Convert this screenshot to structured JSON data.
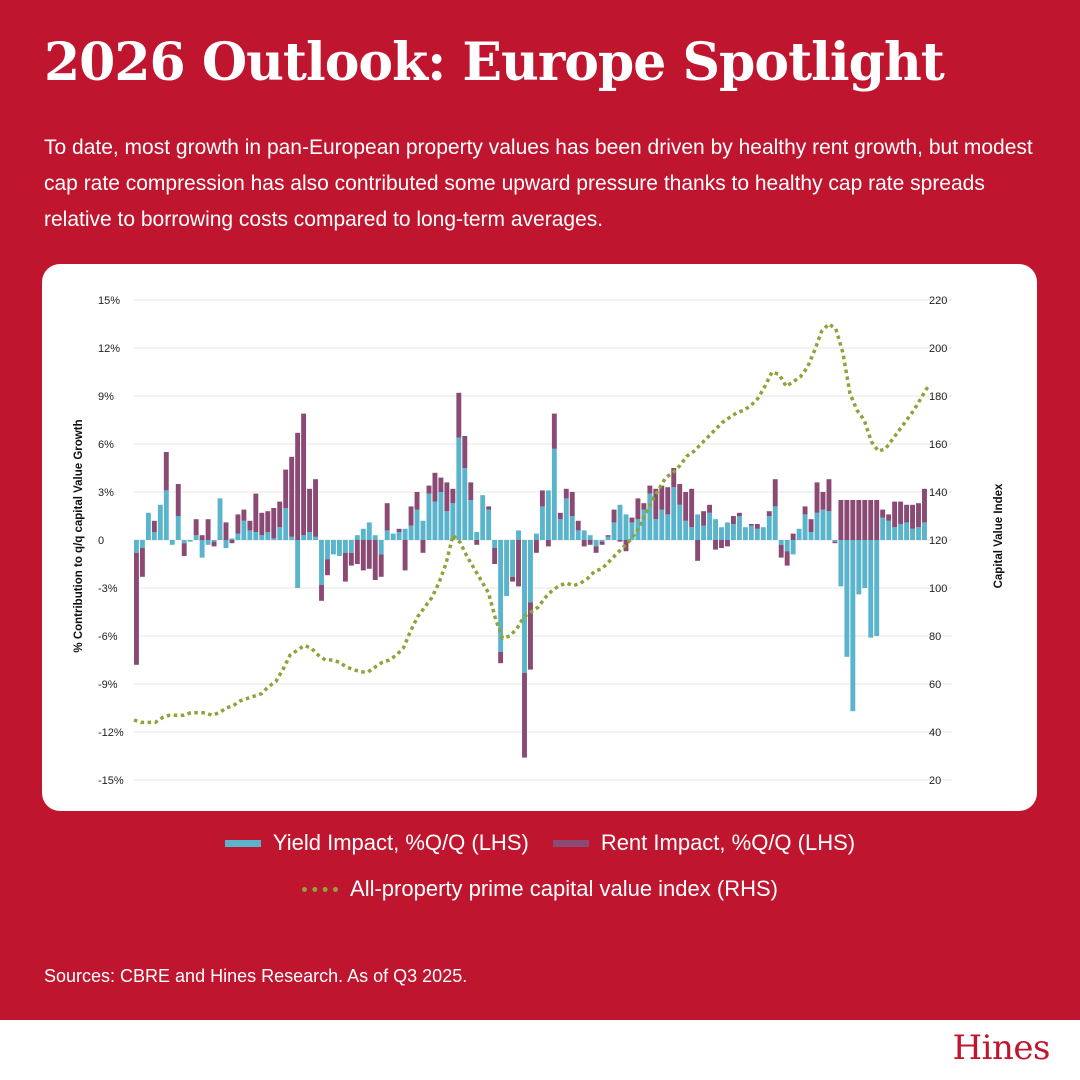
{
  "header": {
    "title": "2026 Outlook: Europe Spotlight",
    "subtitle": "To date, most growth in pan-European property values has been driven by healthy rent growth, but modest cap rate compression has also contributed some upward pressure thanks to healthy cap rate spreads relative to borrowing costs compared to long-term averages."
  },
  "colors": {
    "background": "#c0152f",
    "yield": "#5ab4cc",
    "rent": "#8a4a73",
    "index": "#8fa33a"
  },
  "chart_data": {
    "type": "bar",
    "left_axis": {
      "label": "% Contribution to q/q capital Value Growth",
      "ylim": [
        -15,
        15
      ],
      "ticks": [
        "15%",
        "12%",
        "9%",
        "6%",
        "3%",
        "0",
        "-3%",
        "-6%",
        "-9%",
        "-12%",
        "-15%"
      ]
    },
    "right_axis": {
      "label": "Capital Value Index",
      "ylim": [
        20,
        220
      ],
      "ticks": [
        "220",
        "200",
        "180",
        "160",
        "140",
        "120",
        "100",
        "80",
        "60",
        "40",
        "20"
      ]
    },
    "grid": true,
    "legend_placement": "bottom",
    "series": [
      {
        "name": "Yield Impact, %Q/Q (LHS)",
        "kind": "bar",
        "axis": "left",
        "values": [
          -0.8,
          -0.5,
          1.7,
          0.5,
          2.2,
          3.1,
          -0.3,
          1.5,
          -0.2,
          -0.1,
          0.3,
          -1.1,
          -0.3,
          -0.1,
          2.6,
          -0.5,
          0.1,
          0.4,
          1.2,
          0.6,
          0.5,
          0.3,
          0.5,
          0.1,
          0.8,
          2,
          0.2,
          -3,
          0.3,
          0.5,
          0.2,
          -2.8,
          -1.2,
          -0.9,
          -1,
          -0.8,
          -0.8,
          0.3,
          0.7,
          1.1,
          0.3,
          -0.9,
          0.6,
          0.4,
          0.5,
          0.7,
          0.9,
          1.9,
          1.2,
          2.9,
          2.4,
          3,
          1.8,
          2.3,
          6.4,
          4.5,
          2.5,
          0.5,
          2.8,
          1.9,
          -0.5,
          -7,
          -3.5,
          -2.3,
          0.6,
          -8.3,
          -3.9,
          0.4,
          2.1,
          3.1,
          5.7,
          1.3,
          2.6,
          1.5,
          0.6,
          0.6,
          0.3,
          -0.4,
          -0.1,
          0.2,
          1.1,
          2.2,
          1.6,
          1.1,
          1.3,
          1.9,
          2.9,
          1.3,
          1.9,
          1.6,
          3.3,
          2.2,
          1.2,
          0.8,
          1.6,
          0.9,
          1.7,
          1.3,
          0.8,
          1.1,
          1,
          1.5,
          0.8,
          0.9,
          0.7,
          0.8,
          1.5,
          2.1,
          -0.3,
          -0.7,
          -0.9,
          0.7,
          1.6,
          0.5,
          1.7,
          1.9,
          1.8,
          -0.1,
          -2.9,
          -7.3,
          -10.7,
          -3.4,
          -3,
          -6.1,
          -6,
          1.4,
          1.2,
          0.8,
          1,
          1.1,
          0.7,
          0.8,
          1.1
        ],
        "extra_rent": [
          -7,
          -1.8,
          0,
          0.7,
          0,
          2.4,
          0,
          2,
          -0.8,
          0,
          1,
          0.3,
          1.3,
          -0.3,
          0,
          1.1,
          -0.2,
          1.2,
          0.7,
          0.6,
          2.4,
          1.4,
          1.3,
          1.9,
          1.6,
          2.4,
          5,
          6.7,
          7.6,
          2.7,
          3.6,
          -1,
          -1,
          0,
          0,
          -1.8,
          -0.8,
          -1.5,
          -1.9,
          -1.8,
          -2.5,
          -1.4,
          1.7,
          0,
          0.2,
          -1.9,
          1.2,
          1.1,
          -0.8,
          0.5,
          1.8,
          0.9,
          1.8,
          0.9,
          2.8,
          2,
          1.1,
          -0.3,
          0,
          0.2,
          -1,
          -0.7,
          0,
          -0.3,
          -2.9,
          -5.3,
          -4.2,
          -0.8,
          1,
          -0.4,
          2.2,
          0.4,
          0.6,
          1.5,
          0.6,
          -0.4,
          -0.3,
          -0.4,
          -0.2,
          0.1,
          0.8,
          -0.1,
          -0.7,
          0.3,
          1.3,
          0.4,
          0.5,
          1.9,
          1.5,
          1.7,
          1.2,
          1.3,
          1.8,
          2.4,
          -1.3,
          0.9,
          0.5,
          -0.6,
          -0.5,
          -0.4,
          0.5,
          0.2,
          0,
          0.1,
          0.3,
          0,
          0.3,
          1.7,
          -0.8,
          -0.9,
          0.4,
          0,
          0.5,
          0.8,
          1.9,
          1.1,
          2,
          -0.1,
          2.5,
          2.5,
          2.5,
          2.5,
          2.5,
          2.5,
          2.5,
          0.5,
          0.4,
          1.6,
          1.4,
          1.1,
          1.5,
          1.5,
          2.1
        ]
      },
      {
        "name": "Rent Impact, %Q/Q (LHS)",
        "kind": "bar",
        "axis": "left"
      },
      {
        "name": "All-property prime capital value index (RHS)",
        "kind": "line",
        "axis": "right",
        "values": [
          45,
          44,
          44,
          44,
          46,
          47,
          47,
          47,
          48,
          48,
          48,
          47,
          48,
          50,
          51,
          53,
          54,
          55,
          56,
          59,
          61,
          66,
          72,
          74,
          76,
          75,
          72,
          70,
          70,
          69,
          67,
          66,
          65,
          65,
          67,
          69,
          70,
          72,
          75,
          82,
          88,
          92,
          96,
          102,
          110,
          122,
          119,
          113,
          108,
          103,
          98,
          87,
          79,
          80,
          83,
          88,
          90,
          92,
          96,
          99,
          101,
          102,
          101,
          102,
          104,
          107,
          108,
          111,
          114,
          117,
          120,
          124,
          130,
          136,
          141,
          146,
          148,
          151,
          155,
          157,
          160,
          163,
          166,
          169,
          171,
          173,
          174,
          176,
          179,
          184,
          190,
          189,
          184,
          186,
          188,
          192,
          199,
          207,
          210,
          208,
          198,
          181,
          174,
          170,
          161,
          157,
          158,
          162,
          166,
          170,
          174,
          179,
          184
        ]
      }
    ]
  },
  "legend": {
    "item1": "Yield Impact, %Q/Q (LHS)",
    "item2": "Rent Impact, %Q/Q (LHS)",
    "item3": "All-property prime capital value index (RHS)"
  },
  "footer": {
    "sources": "Sources: CBRE and Hines Research. As of Q3 2025.",
    "logo": "Hines"
  }
}
